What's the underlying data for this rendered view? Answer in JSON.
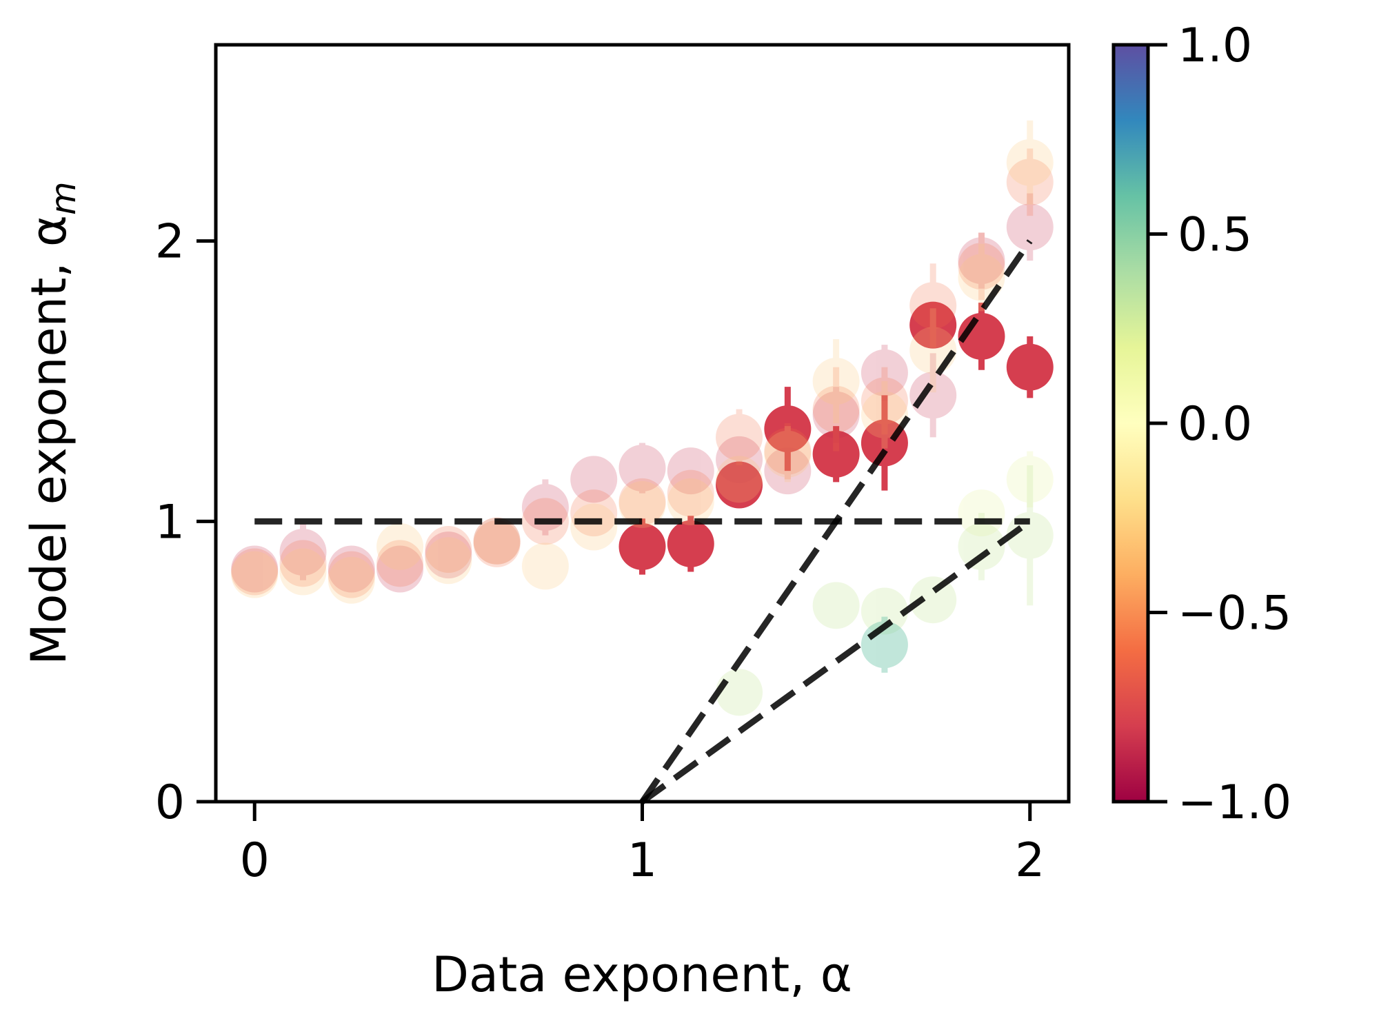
{
  "chart_data": {
    "type": "scatter",
    "xlabel": "Data exponent, α",
    "ylabel": "Model exponent, α",
    "ylabel_subscript": "m",
    "xlim": [
      -0.1,
      2.1
    ],
    "ylim": [
      0,
      2.7
    ],
    "xticks": [
      {
        "value": 0,
        "label": "0"
      },
      {
        "value": 1,
        "label": "1"
      },
      {
        "value": 2,
        "label": "2"
      }
    ],
    "yticks": [
      {
        "value": 0,
        "label": "0"
      },
      {
        "value": 1,
        "label": "1"
      },
      {
        "value": 2,
        "label": "2"
      }
    ],
    "grid": false,
    "colormap": "Spectral",
    "colorbar": {
      "range": [
        -1.0,
        1.0
      ],
      "ticks": [
        {
          "value": 1.0,
          "label": "1.0"
        },
        {
          "value": 0.5,
          "label": "0.5"
        },
        {
          "value": 0.0,
          "label": "0.0"
        },
        {
          "value": -0.5,
          "label": "−0.5"
        },
        {
          "value": -1.0,
          "label": "−1.0"
        }
      ],
      "stops": [
        {
          "offset": 0,
          "color": "#5e4fa2"
        },
        {
          "offset": 0.1,
          "color": "#3288bd"
        },
        {
          "offset": 0.2,
          "color": "#66c2a5"
        },
        {
          "offset": 0.3,
          "color": "#abdda4"
        },
        {
          "offset": 0.4,
          "color": "#e6f598"
        },
        {
          "offset": 0.5,
          "color": "#ffffbf"
        },
        {
          "offset": 0.6,
          "color": "#fee08b"
        },
        {
          "offset": 0.7,
          "color": "#fdae61"
        },
        {
          "offset": 0.8,
          "color": "#f46d43"
        },
        {
          "offset": 0.9,
          "color": "#d53e4f"
        },
        {
          "offset": 1,
          "color": "#9e0142"
        }
      ]
    },
    "reference_lines": [
      {
        "x": [
          0,
          2
        ],
        "y": [
          1,
          1
        ],
        "style": "dashed"
      },
      {
        "x": [
          1,
          2
        ],
        "y": [
          0,
          2
        ],
        "style": "dashed"
      },
      {
        "x": [
          1,
          2
        ],
        "y": [
          0,
          1
        ],
        "style": "dashed"
      }
    ],
    "series": [
      {
        "color_value": -0.8,
        "opacity": 1.0,
        "points": [
          {
            "x": 1.0,
            "y": 0.91,
            "err": 0.1
          },
          {
            "x": 1.125,
            "y": 0.92,
            "err": 0.1
          },
          {
            "x": 1.25,
            "y": 1.13,
            "err": 0.07
          },
          {
            "x": 1.375,
            "y": 1.33,
            "err": 0.15
          },
          {
            "x": 1.5,
            "y": 1.24,
            "err": 0.1
          },
          {
            "x": 1.625,
            "y": 1.28,
            "err": 0.17
          },
          {
            "x": 1.75,
            "y": 1.7,
            "err": 0.07
          },
          {
            "x": 1.875,
            "y": 1.66,
            "err": 0.12
          },
          {
            "x": 2.0,
            "y": 1.55,
            "err": 0.11
          }
        ]
      },
      {
        "color_value": -0.85,
        "opacity": 0.22,
        "points": [
          {
            "x": 0.0,
            "y": 0.83,
            "err": 0.06
          },
          {
            "x": 0.125,
            "y": 0.89,
            "err": 0.1
          },
          {
            "x": 0.25,
            "y": 0.83,
            "err": 0.08
          },
          {
            "x": 0.375,
            "y": 0.83,
            "err": 0.08
          },
          {
            "x": 0.5,
            "y": 0.88,
            "err": 0.05
          },
          {
            "x": 0.625,
            "y": 0.93,
            "err": 0.05
          },
          {
            "x": 0.75,
            "y": 1.05,
            "err": 0.1
          },
          {
            "x": 0.875,
            "y": 1.15,
            "err": 0.08
          },
          {
            "x": 1.0,
            "y": 1.19,
            "err": 0.09
          },
          {
            "x": 1.125,
            "y": 1.18,
            "err": 0.08
          },
          {
            "x": 1.25,
            "y": 1.22,
            "err": 0.08
          },
          {
            "x": 1.375,
            "y": 1.18,
            "err": 0.06
          },
          {
            "x": 1.5,
            "y": 1.38,
            "err": 0.1
          },
          {
            "x": 1.625,
            "y": 1.53,
            "err": 0.1
          },
          {
            "x": 1.75,
            "y": 1.45,
            "err": 0.15
          },
          {
            "x": 1.875,
            "y": 1.93,
            "err": 0.1
          },
          {
            "x": 2.0,
            "y": 2.05,
            "err": 0.12
          }
        ]
      },
      {
        "color_value": -0.6,
        "opacity": 0.22,
        "points": [
          {
            "x": 0.0,
            "y": 0.82,
            "err": 0.06
          },
          {
            "x": 0.125,
            "y": 0.85,
            "err": 0.07
          },
          {
            "x": 0.25,
            "y": 0.81,
            "err": 0.07
          },
          {
            "x": 0.375,
            "y": 0.85,
            "err": 0.06
          },
          {
            "x": 0.5,
            "y": 0.9,
            "err": 0.06
          },
          {
            "x": 0.625,
            "y": 0.92,
            "err": 0.05
          },
          {
            "x": 0.75,
            "y": 1.0,
            "err": 0.06
          },
          {
            "x": 0.875,
            "y": 1.03,
            "err": 0.07
          },
          {
            "x": 1.0,
            "y": 1.07,
            "err": 0.07
          },
          {
            "x": 1.125,
            "y": 1.1,
            "err": 0.06
          },
          {
            "x": 1.25,
            "y": 1.3,
            "err": 0.1
          },
          {
            "x": 1.375,
            "y": 1.25,
            "err": 0.1
          },
          {
            "x": 1.5,
            "y": 1.4,
            "err": 0.15
          },
          {
            "x": 1.625,
            "y": 1.43,
            "err": 0.12
          },
          {
            "x": 1.75,
            "y": 1.77,
            "err": 0.15
          },
          {
            "x": 1.875,
            "y": 1.91,
            "err": 0.12
          },
          {
            "x": 2.0,
            "y": 2.21,
            "err": 0.12
          }
        ]
      },
      {
        "color_value": -0.3,
        "opacity": 0.22,
        "points": [
          {
            "x": 0.0,
            "y": 0.81,
            "err": 0.06
          },
          {
            "x": 0.125,
            "y": 0.82,
            "err": 0.06
          },
          {
            "x": 0.25,
            "y": 0.79,
            "err": 0.07
          },
          {
            "x": 0.375,
            "y": 0.91,
            "err": 0.07
          },
          {
            "x": 0.5,
            "y": 0.86,
            "err": 0.06
          },
          {
            "x": 0.625,
            "y": 0.93,
            "err": 0.05
          },
          {
            "x": 0.75,
            "y": 0.84,
            "err": 0.07
          },
          {
            "x": 0.875,
            "y": 0.98,
            "err": 0.06
          },
          {
            "x": 1.0,
            "y": 1.06,
            "err": 0.07
          },
          {
            "x": 1.125,
            "y": 1.07,
            "err": 0.07
          },
          {
            "x": 1.25,
            "y": 1.15,
            "err": 0.08
          },
          {
            "x": 1.375,
            "y": 1.24,
            "err": 0.1
          },
          {
            "x": 1.5,
            "y": 1.5,
            "err": 0.15
          },
          {
            "x": 1.625,
            "y": 1.38,
            "err": 0.12
          },
          {
            "x": 1.75,
            "y": 1.61,
            "err": 0.15
          },
          {
            "x": 1.875,
            "y": 1.87,
            "err": 0.12
          },
          {
            "x": 2.0,
            "y": 2.28,
            "err": 0.15
          }
        ]
      },
      {
        "color_value": 0.2,
        "opacity": 0.22,
        "points": [
          {
            "x": 1.875,
            "y": 1.03,
            "err": 0.08
          },
          {
            "x": 2.0,
            "y": 1.15,
            "err": 0.1
          }
        ]
      },
      {
        "color_value": 0.3,
        "opacity": 0.28,
        "points": [
          {
            "x": 1.25,
            "y": 0.39,
            "err": 0.07
          },
          {
            "x": 1.5,
            "y": 0.7,
            "err": 0.06
          },
          {
            "x": 1.625,
            "y": 0.68,
            "err": 0.05
          },
          {
            "x": 1.75,
            "y": 0.72,
            "err": 0.06
          },
          {
            "x": 1.875,
            "y": 0.91,
            "err": 0.12
          },
          {
            "x": 2.0,
            "y": 0.95,
            "err": 0.25
          }
        ]
      },
      {
        "color_value": 0.6,
        "opacity": 0.4,
        "points": [
          {
            "x": 1.625,
            "y": 0.56,
            "err": 0.1
          }
        ]
      }
    ]
  }
}
